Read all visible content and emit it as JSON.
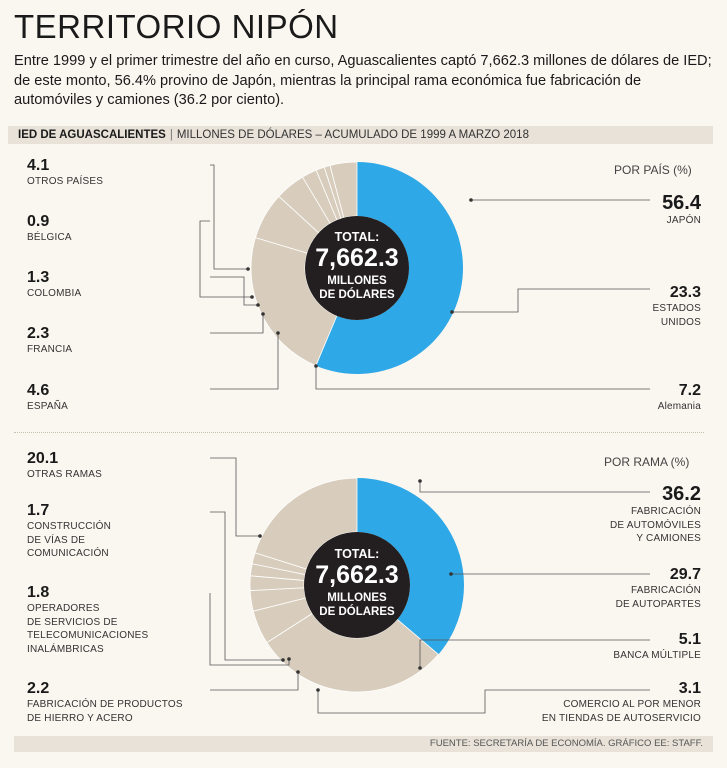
{
  "title": "TERRITORIO NIPÓN",
  "intro": "Entre 1999 y el primer trimestre del año en curso, Aguascalientes captó 7,662.3 millones de dólares de IED; de este monto, 56.4% provino de Japón, mientras la principal rama económica fue fabricación de automóviles y camiones (36.2 por ciento).",
  "header": {
    "bold": "IED DE AGUASCALIENTES",
    "sub": "MILLONES DE DÓLARES – ACUMULADO DE 1999 A MARZO 2018"
  },
  "source": "FUENTE: SECRETARÍA DE ECONOMÍA. GRÁFICO EE: STAFF.",
  "colors": {
    "highlight": "#2ea8e6",
    "rest": "#d8cdbc",
    "center": "#231f20",
    "line": "#555555"
  },
  "chart_data": [
    {
      "type": "pie",
      "title": "POR PAÍS (%)",
      "center": {
        "line1": "TOTAL:",
        "value": "7,662.3",
        "line3": "MILLONES",
        "line4": "DE DÓLARES"
      },
      "slices": [
        {
          "label": "JAPÓN",
          "value": 56.4
        },
        {
          "label": "ESTADOS UNIDOS",
          "value": 23.3
        },
        {
          "label": "Alemania",
          "value": 7.2
        },
        {
          "label": "ESPAÑA",
          "value": 4.6
        },
        {
          "label": "FRANCIA",
          "value": 2.3
        },
        {
          "label": "COLOMBIA",
          "value": 1.3
        },
        {
          "label": "BÉLGICA",
          "value": 0.9
        },
        {
          "label": "OTROS PAÍSES",
          "value": 4.1
        }
      ],
      "labels": {
        "japon": {
          "value": "56.4",
          "name": "JAPÓN"
        },
        "eu": {
          "value": "23.3",
          "name1": "ESTADOS",
          "name2": "UNIDOS"
        },
        "alemania": {
          "value": "7.2",
          "name": "Alemania"
        },
        "espana": {
          "value": "4.6",
          "name": "ESPAÑA"
        },
        "francia": {
          "value": "2.3",
          "name": "FRANCIA"
        },
        "colombia": {
          "value": "1.3",
          "name": "COLOMBIA"
        },
        "belgica": {
          "value": "0.9",
          "name": "BÉLGICA"
        },
        "otros": {
          "value": "4.1",
          "name": "OTROS PAÍSES"
        }
      }
    },
    {
      "type": "pie",
      "title": "POR RAMA (%)",
      "center": {
        "line1": "TOTAL:",
        "value": "7,662.3",
        "line3": "MILLONES",
        "line4": "DE DÓLARES"
      },
      "slices": [
        {
          "label": "FABRICACIÓN DE AUTOMÓVILES Y CAMIONES",
          "value": 36.2
        },
        {
          "label": "FABRICACIÓN DE AUTOPARTES",
          "value": 29.7
        },
        {
          "label": "BANCA MÚLTIPLE",
          "value": 5.1
        },
        {
          "label": "COMERCIO AL POR MENOR EN TIENDAS DE AUTOSERVICIO",
          "value": 3.1
        },
        {
          "label": "FABRICACIÓN DE PRODUCTOS DE HIERRO Y ACERO",
          "value": 2.2
        },
        {
          "label": "OPERADORES DE SERVICIOS DE TELECOMUNICACIONES INALÁMBRICAS",
          "value": 1.8
        },
        {
          "label": "CONSTRUCCIÓN DE VÍAS DE COMUNICACIÓN",
          "value": 1.7
        },
        {
          "label": "OTRAS RAMAS",
          "value": 20.1
        }
      ],
      "labels": {
        "autos": {
          "value": "36.2",
          "name1": "FABRICACIÓN",
          "name2": "DE AUTOMÓVILES",
          "name3": "Y CAMIONES"
        },
        "autopartes": {
          "value": "29.7",
          "name1": "FABRICACIÓN",
          "name2": "DE AUTOPARTES"
        },
        "banca": {
          "value": "5.1",
          "name": "BANCA MÚLTIPLE"
        },
        "comercio": {
          "value": "3.1",
          "name1": "COMERCIO AL POR MENOR",
          "name2": "EN TIENDAS DE AUTOSERVICIO"
        },
        "hierro": {
          "value": "2.2",
          "name1": "FABRICACIÓN DE PRODUCTOS",
          "name2": "DE HIERRO Y ACERO"
        },
        "telecom": {
          "value": "1.8",
          "name1": "OPERADORES",
          "name2": "DE SERVICIOS DE",
          "name3": "TELECOMUNICACIONES",
          "name4": "INALÁMBRICAS"
        },
        "construccion": {
          "value": "1.7",
          "name1": "CONSTRUCCIÓN",
          "name2": "DE VÍAS DE",
          "name3": "COMUNICACIÓN"
        },
        "otras": {
          "value": "20.1",
          "name": "OTRAS RAMAS"
        }
      }
    }
  ]
}
